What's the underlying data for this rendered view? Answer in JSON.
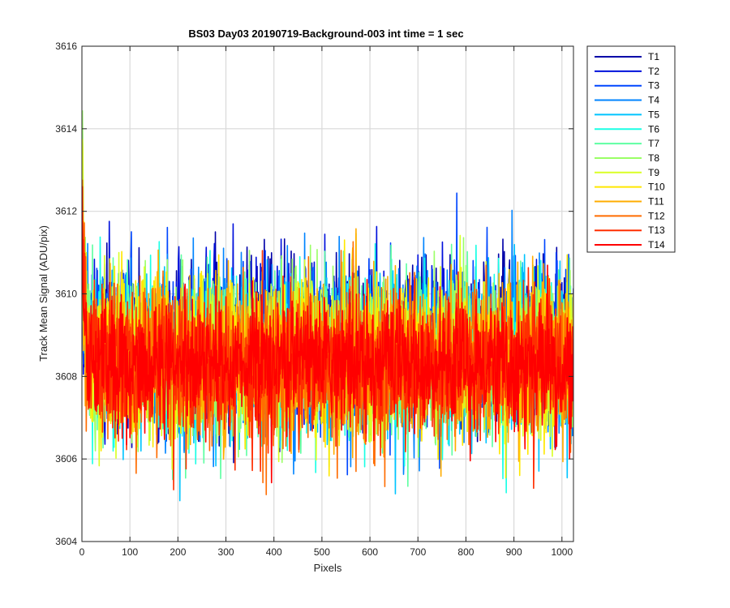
{
  "chart_data": {
    "type": "line",
    "title": "BS03 Day03 20190719-Background-003 int time = 1 sec",
    "xlabel": "Pixels",
    "ylabel": "Track Mean Signal (ADU/pix)",
    "xlim": [
      0,
      1024
    ],
    "ylim": [
      3604,
      3616
    ],
    "xticks": [
      0,
      100,
      200,
      300,
      400,
      500,
      600,
      700,
      800,
      900,
      1000
    ],
    "yticks": [
      3604,
      3606,
      3608,
      3610,
      3612,
      3614,
      3616
    ],
    "grid": true,
    "legend_position": "outside-right",
    "n_points": 1024,
    "series": [
      {
        "name": "T1",
        "color": "#0000a8",
        "mean": 3608.9,
        "std": 0.95,
        "start": 3610.3
      },
      {
        "name": "T2",
        "color": "#0010dc",
        "mean": 3608.8,
        "std": 0.95,
        "start": 3610.5
      },
      {
        "name": "T3",
        "color": "#0046ff",
        "mean": 3608.7,
        "std": 0.95,
        "start": 3610.8
      },
      {
        "name": "T4",
        "color": "#0084ff",
        "mean": 3608.6,
        "std": 0.95,
        "start": 3611.0
      },
      {
        "name": "T5",
        "color": "#00c4ff",
        "mean": 3608.55,
        "std": 0.95,
        "start": 3611.3
      },
      {
        "name": "T6",
        "color": "#1affe5",
        "mean": 3608.5,
        "std": 0.95,
        "start": 3611.8
      },
      {
        "name": "T7",
        "color": "#5effa2",
        "mean": 3608.5,
        "std": 0.95,
        "start": 3612.5
      },
      {
        "name": "T8",
        "color": "#9aff66",
        "mean": 3608.5,
        "std": 0.95,
        "start": 3615.0
      },
      {
        "name": "T9",
        "color": "#daff24",
        "mean": 3608.4,
        "std": 0.95,
        "start": 3613.5
      },
      {
        "name": "T10",
        "color": "#ffe800",
        "mean": 3608.4,
        "std": 0.95,
        "start": 3612.0
      },
      {
        "name": "T11",
        "color": "#ffac00",
        "mean": 3608.35,
        "std": 0.9,
        "start": 3611.5
      },
      {
        "name": "T12",
        "color": "#ff6c00",
        "mean": 3608.3,
        "std": 0.9,
        "start": 3611.0
      },
      {
        "name": "T13",
        "color": "#ff2e00",
        "mean": 3608.3,
        "std": 0.85,
        "start": 3612.6
      },
      {
        "name": "T14",
        "color": "#ff0000",
        "mean": 3608.3,
        "std": 0.75,
        "start": 3612.2
      }
    ]
  }
}
